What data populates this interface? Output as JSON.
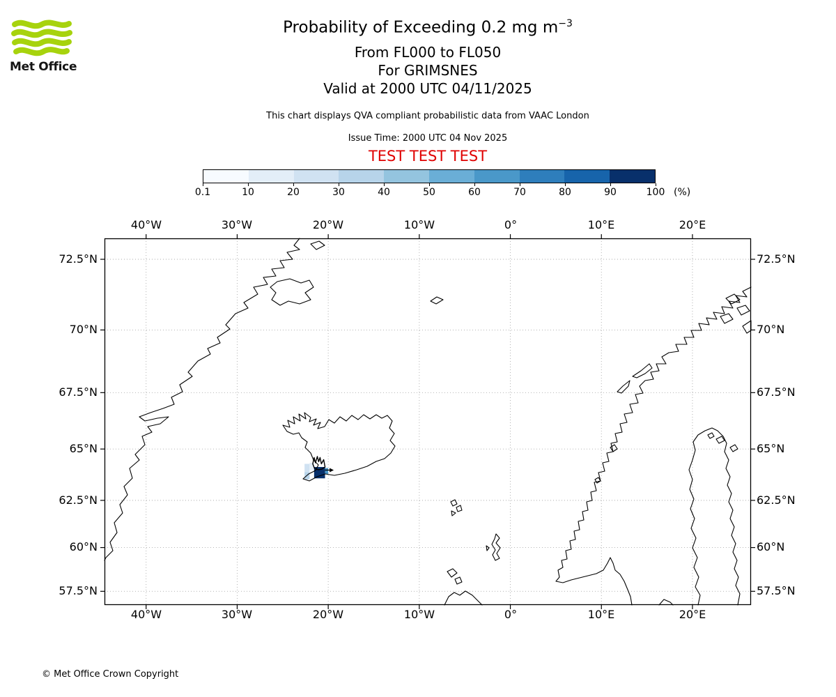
{
  "colors": {
    "brand_green": "#a7d30d",
    "test_red": "#e00000",
    "grid_gray": "#aaaaaa"
  },
  "logo": {
    "brand": "Met Office"
  },
  "header": {
    "title_main": "Probability of Exceeding 0.2 mg m",
    "title_sup": "−3",
    "subtitle_levels": "From FL000 to FL050",
    "subtitle_volcano": "For GRIMSNES",
    "subtitle_valid": "Valid at 2000 UTC 04/11/2025",
    "description": "This chart displays QVA compliant probabilistic data from VAAC London",
    "issue_time": "Issue Time: 2000 UTC 04 Nov 2025",
    "test_banner": "TEST TEST TEST"
  },
  "colorbar": {
    "unit_label": "(%)",
    "tick_labels": [
      "0.1",
      "10",
      "20",
      "30",
      "40",
      "50",
      "60",
      "70",
      "80",
      "90",
      "100"
    ],
    "segment_colors": [
      "#f7fbff",
      "#e3eef8",
      "#d0e2f2",
      "#b7d4ea",
      "#94c4df",
      "#6aaed6",
      "#4a98c9",
      "#2e7ebc",
      "#1764ab",
      "#08306b"
    ]
  },
  "footer": {
    "copyright_text": "© Met Office Crown Copyright"
  },
  "chart_data": {
    "type": "heatmap",
    "title": "Probability of Exceeding 0.2 mg m⁻³",
    "threshold": "0.2 mg m⁻³",
    "flight_level_range": "FL000 to FL050",
    "volcano": "GRIMSNES",
    "valid_time": "2000 UTC 04/11/2025",
    "issue_time": "2000 UTC 04 Nov 2025",
    "source_note": "This chart displays QVA compliant probabilistic data from VAAC London",
    "status": "TEST TEST TEST",
    "units": "%",
    "legend_boundaries_pct": [
      0.1,
      10,
      20,
      30,
      40,
      50,
      60,
      70,
      80,
      90,
      100
    ],
    "projection": "mercator",
    "lon_range": [
      -44.57,
      26.43
    ],
    "lat_range": [
      56.68,
      73.18
    ],
    "x_tick_values": [
      -40,
      -30,
      -20,
      -10,
      0,
      10,
      20
    ],
    "x_tick_labels": [
      "40°W",
      "30°W",
      "20°W",
      "10°W",
      "0°",
      "10°E",
      "20°E"
    ],
    "y_tick_values": [
      72.5,
      70,
      67.5,
      65,
      62.5,
      60,
      57.5
    ],
    "y_tick_labels": [
      "72.5°N",
      "70°N",
      "67.5°N",
      "65°N",
      "62.5°N",
      "60°N",
      "57.5°N"
    ],
    "cells": [
      {
        "lon": -22.6,
        "lat": 63.9,
        "w": 0.55,
        "h": 0.4,
        "pct": "20-30",
        "color": "#d0e2f2"
      },
      {
        "lon": -22.6,
        "lat": 63.55,
        "w": 0.55,
        "h": 0.35,
        "pct": "30-40",
        "color": "#b7d4ea"
      },
      {
        "lon": -22.05,
        "lat": 64.0,
        "w": 0.5,
        "h": 0.35,
        "pct": "10-20",
        "color": "#e3eef8"
      },
      {
        "lon": -21.55,
        "lat": 63.6,
        "w": 1.2,
        "h": 0.55,
        "pct": "90-100",
        "color": "#08306b"
      },
      {
        "lon": -20.35,
        "lat": 63.8,
        "w": 0.35,
        "h": 0.3,
        "pct": "60-70",
        "color": "#4a98c9"
      }
    ],
    "ash_contour_lonlat": [
      [
        -21.7,
        64.3
      ],
      [
        -21.55,
        64.6
      ],
      [
        -21.4,
        64.35
      ],
      [
        -21.2,
        64.65
      ],
      [
        -21.05,
        64.4
      ],
      [
        -20.9,
        64.6
      ],
      [
        -20.75,
        64.3
      ],
      [
        -20.5,
        64.5
      ],
      [
        -20.35,
        64.15
      ],
      [
        -20.7,
        64.05
      ],
      [
        -21.1,
        64.02
      ],
      [
        -21.5,
        64.08
      ]
    ],
    "vector_arrow_lonlat": {
      "from": [
        -20.35,
        64.0
      ],
      "to": [
        -19.85,
        64.0
      ]
    }
  }
}
